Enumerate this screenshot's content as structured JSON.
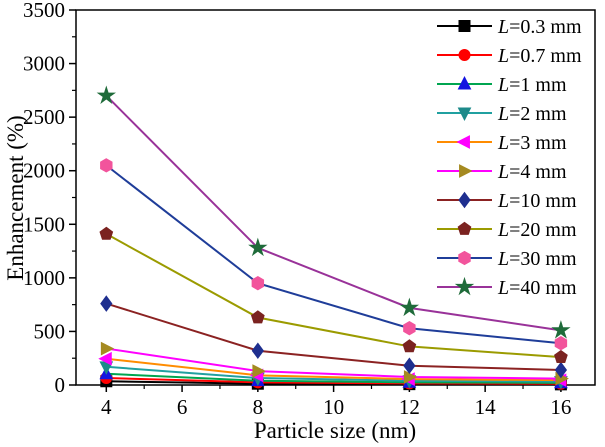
{
  "chart_data": {
    "type": "line",
    "title": "",
    "xlabel": "Particle size (nm)",
    "ylabel": "Enhancement (%)",
    "x": [
      4,
      8,
      12,
      16
    ],
    "xlim": [
      3.2,
      16.9
    ],
    "ylim": [
      0,
      3500
    ],
    "x_ticks": [
      4,
      6,
      8,
      10,
      12,
      14,
      16
    ],
    "y_ticks": [
      0,
      500,
      1000,
      1500,
      2000,
      2500,
      3000,
      3500
    ],
    "x_minor_step": 1,
    "y_minor_step": 250,
    "grid": "off",
    "legend_position": "top-right-inside",
    "series": [
      {
        "name": "L=0.3 mm",
        "marker": "square",
        "marker_color": "#000000",
        "line_color": "#000000",
        "values": [
          35,
          12,
          8,
          6
        ]
      },
      {
        "name": "L=0.7 mm",
        "marker": "circle",
        "marker_color": "#FF0000",
        "line_color": "#FF0000",
        "values": [
          65,
          25,
          15,
          12
        ]
      },
      {
        "name": "L=1 mm",
        "marker": "triangle-up",
        "marker_color": "#1414E0",
        "line_color": "#00A550",
        "values": [
          105,
          40,
          25,
          20
        ]
      },
      {
        "name": "L=2 mm",
        "marker": "triangle-down",
        "marker_color": "#1D8A8A",
        "line_color": "#20A0A0",
        "values": [
          170,
          65,
          40,
          32
        ]
      },
      {
        "name": "L=3 mm",
        "marker": "triangle-left",
        "marker_color": "#FF00FF",
        "line_color": "#FF8C00",
        "values": [
          245,
          90,
          55,
          45
        ]
      },
      {
        "name": "L=4 mm",
        "marker": "triangle-right",
        "marker_color": "#A58A21",
        "line_color": "#FF00FF",
        "values": [
          340,
          130,
          75,
          60
        ]
      },
      {
        "name": "L=10 mm",
        "marker": "diamond",
        "marker_color": "#1F2F8F",
        "line_color": "#8B2222",
        "values": [
          760,
          320,
          180,
          140
        ]
      },
      {
        "name": "L=20 mm",
        "marker": "pentagon",
        "marker_color": "#7B2320",
        "line_color": "#9B9B00",
        "values": [
          1410,
          630,
          360,
          260
        ]
      },
      {
        "name": "L=30 mm",
        "marker": "hexagon",
        "marker_color": "#F2549C",
        "line_color": "#1F3D99",
        "values": [
          2050,
          950,
          530,
          390
        ]
      },
      {
        "name": "L=40 mm",
        "marker": "star",
        "marker_color": "#1F6B3A",
        "line_color": "#993299",
        "values": [
          2700,
          1280,
          720,
          510
        ]
      }
    ]
  }
}
